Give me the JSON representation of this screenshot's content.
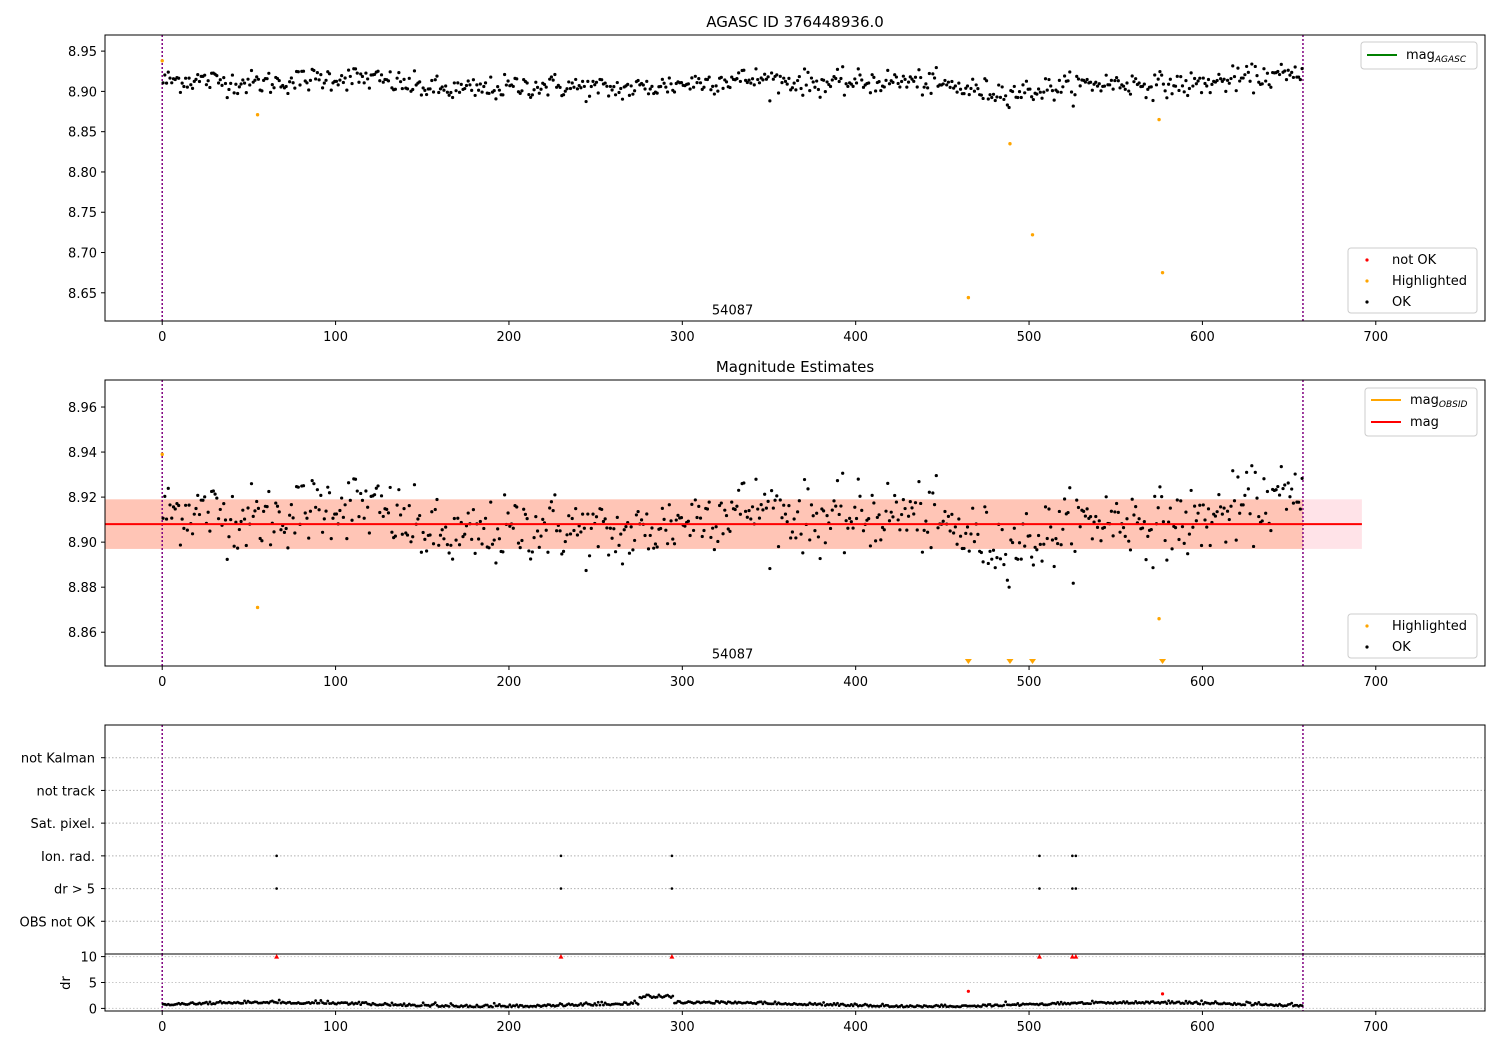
{
  "chart_data": [
    {
      "type": "scatter",
      "title": "AGASC ID 376448936.0",
      "xlim": [
        -33,
        763
      ],
      "ylim": [
        8.615,
        8.97
      ],
      "xticks": [
        0,
        100,
        200,
        300,
        400,
        500,
        600,
        700
      ],
      "yticks": [
        8.65,
        8.7,
        8.75,
        8.8,
        8.85,
        8.9,
        8.95
      ],
      "ytick_labels": [
        "8.65",
        "8.70",
        "8.75",
        "8.80",
        "8.85",
        "8.90",
        "8.95"
      ],
      "obs_boundaries": [
        0,
        658
      ],
      "obs_label": {
        "text": "54087",
        "x": 329,
        "y": 8.628
      },
      "ok_points": {
        "count": 658,
        "mean": 8.909,
        "spread": 0.011,
        "min": 8.88,
        "max": 8.935
      },
      "highlighted_points": [
        [
          0,
          8.938
        ],
        [
          55,
          8.871
        ],
        [
          465,
          8.644
        ],
        [
          489,
          8.835
        ],
        [
          502,
          8.722
        ],
        [
          575,
          8.865
        ],
        [
          577,
          8.675
        ]
      ],
      "line_legend": {
        "position": "upper right",
        "entries": [
          {
            "label": "mag",
            "sub": "AGASC",
            "color": "#008000"
          }
        ]
      },
      "marker_legend": {
        "position": "lower right",
        "entries": [
          {
            "label": "not OK",
            "color": "#ff0000"
          },
          {
            "label": "Highlighted",
            "color": "#ffa500"
          },
          {
            "label": "OK",
            "color": "#000000"
          }
        ]
      }
    },
    {
      "type": "scatter",
      "title": "Magnitude Estimates",
      "xlim": [
        -33,
        763
      ],
      "ylim": [
        8.845,
        8.972
      ],
      "xticks": [
        0,
        100,
        200,
        300,
        400,
        500,
        600,
        700
      ],
      "yticks": [
        8.86,
        8.88,
        8.9,
        8.92,
        8.94,
        8.96
      ],
      "ytick_labels": [
        "8.86",
        "8.88",
        "8.90",
        "8.92",
        "8.94",
        "8.96"
      ],
      "obs_boundaries": [
        0,
        658
      ],
      "obs_label": {
        "text": "54087",
        "x": 329,
        "y": 8.85
      },
      "mag_line": {
        "value": 8.908,
        "x_range": [
          -33,
          692
        ],
        "color": "#ff0000"
      },
      "mag_band": {
        "low": 8.897,
        "high": 8.919,
        "color": "#ffc0cb"
      },
      "obsid_band": {
        "low": 8.897,
        "high": 8.919,
        "x_range": [
          -33,
          658
        ],
        "color": "#ffa07a"
      },
      "highlighted_points": [
        [
          0,
          8.939
        ],
        [
          55,
          8.871
        ],
        [
          575,
          8.866
        ]
      ],
      "clipped_points": [
        465,
        489,
        502,
        577
      ],
      "line_legend": {
        "position": "upper right",
        "entries": [
          {
            "label": "mag",
            "sub": "OBSID",
            "color": "#ffa500"
          },
          {
            "label": "mag",
            "sub": "",
            "color": "#ff0000"
          }
        ]
      },
      "marker_legend": {
        "position": "lower right",
        "entries": [
          {
            "label": "Highlighted",
            "color": "#ffa500"
          },
          {
            "label": "OK",
            "color": "#000000"
          }
        ]
      }
    },
    {
      "type": "scatter",
      "title": "",
      "xlim": [
        -33,
        763
      ],
      "flag_rows": [
        "not Kalman",
        "not track",
        "Sat. pixel.",
        "Ion. rad.",
        "dr > 5",
        "OBS not OK"
      ],
      "flags": {
        "Ion. rad.": [
          66,
          230,
          294,
          506,
          525,
          527
        ],
        "dr > 5": [
          66,
          230,
          294,
          506,
          525,
          527
        ]
      },
      "obs_boundaries": [
        0,
        658
      ]
    },
    {
      "type": "scatter",
      "title": "",
      "ylabel": "dr",
      "xlim": [
        -33,
        763
      ],
      "ylim": [
        -0.5,
        10.5
      ],
      "xticks": [
        0,
        100,
        200,
        300,
        400,
        500,
        600,
        700
      ],
      "yticks": [
        0,
        5,
        10
      ],
      "ytick_labels": [
        "0",
        "5",
        "10"
      ],
      "dr_clipped": [
        66,
        230,
        294,
        506,
        525,
        527
      ],
      "dr_red_points": [
        [
          465,
          3.3
        ],
        [
          577,
          2.8
        ]
      ],
      "obs_boundaries": [
        0,
        658
      ]
    }
  ]
}
